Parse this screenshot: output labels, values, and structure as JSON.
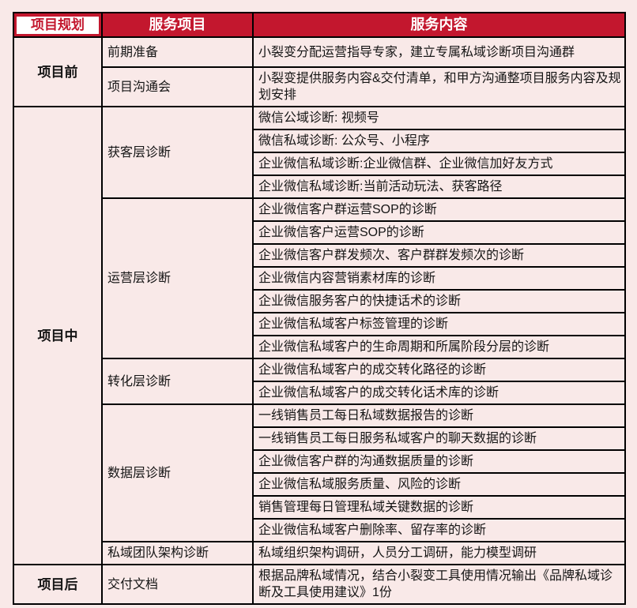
{
  "theme": {
    "accent_red": "#c3172e",
    "page_pink": "#f9e9e8",
    "border_black": "#000000",
    "header_text_white": "#ffffff"
  },
  "header": {
    "col_planning": "项目规划",
    "col_service_item": "服务项目",
    "col_service_content": "服务内容"
  },
  "sections": [
    {
      "phase": "项目前",
      "groups": [
        {
          "item": "前期准备",
          "contents": [
            "小裂变分配运营指导专家，建立专属私域诊断项目沟通群"
          ]
        },
        {
          "item": "项目沟通会",
          "contents": [
            "小裂变提供服务内容&交付清单，和甲方沟通整项目服务内容及规划安排"
          ]
        }
      ]
    },
    {
      "phase": "项目中",
      "groups": [
        {
          "item": "获客层诊断",
          "contents": [
            "微信公域诊断: 视频号",
            "微信私域诊断: 公众号、小程序",
            "企业微信私域诊断:企业微信群、企业微信加好友方式",
            "企业微信私域诊断:当前活动玩法、获客路径"
          ]
        },
        {
          "item": "运营层诊断",
          "contents": [
            "企业微信客户群运营SOP的诊断",
            "企业微信客户运营SOP的诊断",
            "企业微信客户群发频次、客户群群发频次的诊断",
            "企业微信内容营销素材库的诊断",
            "企业微信服务客户的快捷话术的诊断",
            "企业微信私域客户标签管理的诊断",
            "企业微信私域客户的生命周期和所属阶段分层的诊断"
          ]
        },
        {
          "item": "转化层诊断",
          "contents": [
            "企业微信私域客户的成交转化路径的诊断",
            "企业微信私域客户的成交转化话术库的诊断"
          ]
        },
        {
          "item": "数据层诊断",
          "contents": [
            "一线销售员工每日私域数据报告的诊断",
            "一线销售员工每日服务私域客户的聊天数据的诊断",
            "企业微信客户群的沟通数据质量的诊断",
            "企业微信私域服务质量、风险的诊断",
            "销售管理每日管理私域关键数据的诊断",
            "企业微信私域客户删除率、留存率的诊断"
          ]
        },
        {
          "item": "私域团队架构诊断",
          "contents": [
            "私域组织架构调研，人员分工调研，能力模型调研"
          ]
        }
      ]
    },
    {
      "phase": "项目后",
      "groups": [
        {
          "item": "交付文档",
          "contents": [
            "根据品牌私域情况，结合小裂变工具使用情况输出《品牌私域诊断及工具使用建议》1份"
          ]
        }
      ]
    }
  ]
}
